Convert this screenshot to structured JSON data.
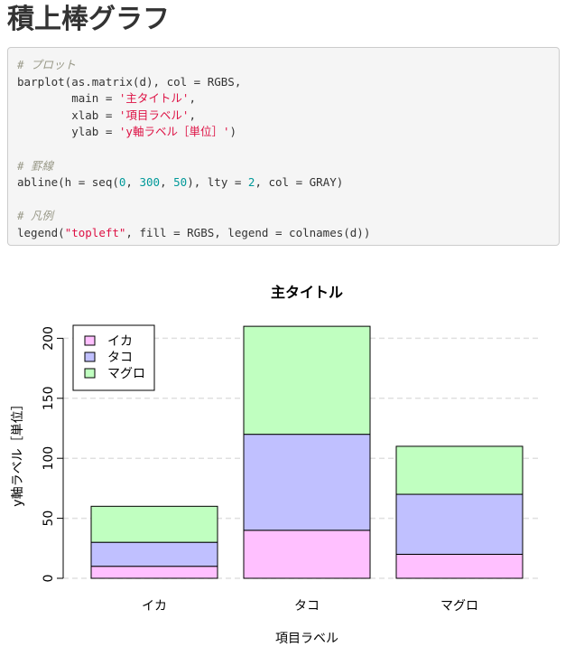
{
  "page": {
    "title": "積上棒グラフ"
  },
  "code": {
    "lines": [
      [
        {
          "t": "c",
          "v": "# プロット"
        }
      ],
      [
        {
          "t": "n",
          "v": "barplot(as.matrix(d), col = RGBS,"
        }
      ],
      [
        {
          "t": "n",
          "v": "        main = "
        },
        {
          "t": "s",
          "v": "'主タイトル'"
        },
        {
          "t": "n",
          "v": ","
        }
      ],
      [
        {
          "t": "n",
          "v": "        xlab = "
        },
        {
          "t": "s",
          "v": "'項目ラベル'"
        },
        {
          "t": "n",
          "v": ","
        }
      ],
      [
        {
          "t": "n",
          "v": "        ylab = "
        },
        {
          "t": "s",
          "v": "'y軸ラベル［単位］'"
        },
        {
          "t": "n",
          "v": ")"
        }
      ],
      [
        {
          "t": "n",
          "v": ""
        }
      ],
      [
        {
          "t": "c",
          "v": "# 罫線"
        }
      ],
      [
        {
          "t": "n",
          "v": "abline(h = seq("
        },
        {
          "t": "num",
          "v": "0"
        },
        {
          "t": "n",
          "v": ", "
        },
        {
          "t": "num",
          "v": "300"
        },
        {
          "t": "n",
          "v": ", "
        },
        {
          "t": "num",
          "v": "50"
        },
        {
          "t": "n",
          "v": "), lty = "
        },
        {
          "t": "num",
          "v": "2"
        },
        {
          "t": "n",
          "v": ", col = GRAY)"
        }
      ],
      [
        {
          "t": "n",
          "v": ""
        }
      ],
      [
        {
          "t": "c",
          "v": "# 凡例"
        }
      ],
      [
        {
          "t": "n",
          "v": "legend("
        },
        {
          "t": "s",
          "v": "\"topleft\""
        },
        {
          "t": "n",
          "v": ", fill = RGBS, legend = colnames(d))"
        }
      ]
    ]
  },
  "chart_data": {
    "type": "bar",
    "stacked": true,
    "title": "主タイトル",
    "xlabel": "項目ラベル",
    "ylabel": "y軸ラベル［単位］",
    "categories": [
      "イカ",
      "タコ",
      "マグロ"
    ],
    "series": [
      {
        "name": "イカ",
        "values": [
          10,
          40,
          20
        ],
        "color": "#ffc0ff"
      },
      {
        "name": "タコ",
        "values": [
          20,
          80,
          50
        ],
        "color": "#c0c0ff"
      },
      {
        "name": "マグロ",
        "values": [
          30,
          90,
          40
        ],
        "color": "#c0ffc0"
      }
    ],
    "yticks": [
      0,
      50,
      100,
      150,
      200
    ],
    "ylim": [
      0,
      210
    ],
    "gridlines": [
      0,
      50,
      100,
      150,
      200
    ],
    "grid_color": "#e0e0e0",
    "legend_position": "top-left"
  }
}
